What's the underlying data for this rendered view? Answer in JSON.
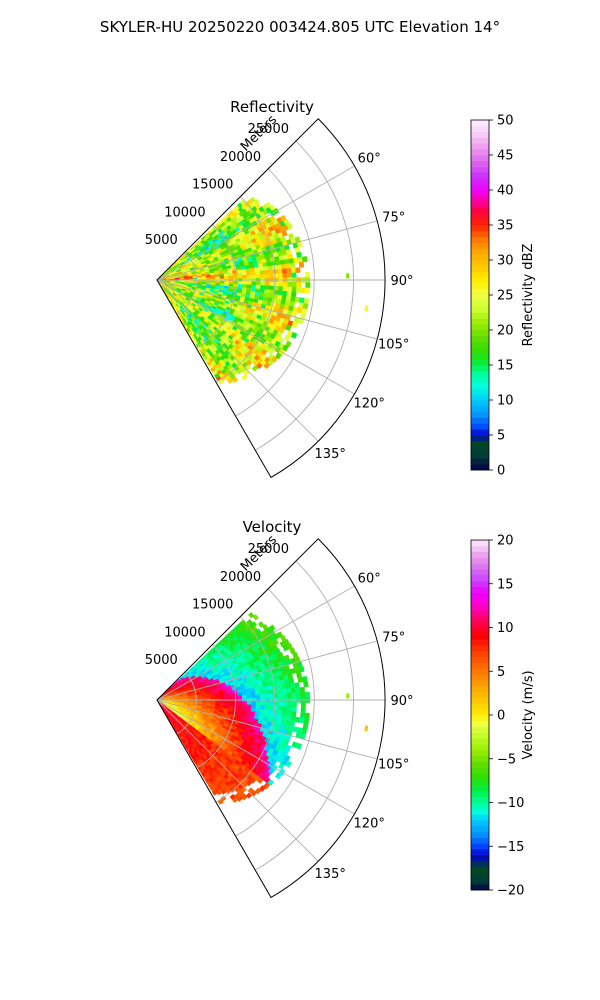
{
  "figure": {
    "title": "SKYLER-HU  20250220  003424.805 UTC Elevation 14°"
  },
  "colors": {
    "grid": "#b0b0b0",
    "frame": "#000000"
  },
  "chart_data": [
    {
      "type": "heatmap",
      "subtype": "polar-ppi-sector",
      "title": "Reflectivity",
      "range_label": "Meters",
      "range_ticks": [
        5000,
        10000,
        15000,
        20000,
        25000
      ],
      "range_tick_labels": [
        "5000",
        "10000",
        "15000",
        "20000",
        "25000"
      ],
      "range_max": 29000,
      "azimuth_min": 45,
      "azimuth_max": 150,
      "azimuth_ticks": [
        60,
        75,
        90,
        105,
        120,
        135
      ],
      "azimuth_tick_labels": [
        "60°",
        "75°",
        "90°",
        "105°",
        "120°",
        "135°"
      ],
      "data_azimuth_range": [
        47,
        149
      ],
      "data_range_max_approx": 19500,
      "grid": true,
      "colorbar": {
        "label": "Reflectivity dBZ",
        "min": 0,
        "max": 50,
        "ticks": [
          0,
          5,
          10,
          15,
          20,
          25,
          30,
          35,
          40,
          45,
          50
        ],
        "tick_labels": [
          "0",
          "5",
          "10",
          "15",
          "20",
          "25",
          "30",
          "35",
          "40",
          "45",
          "50"
        ],
        "stops": [
          {
            "v": 0,
            "c": "#00004a"
          },
          {
            "v": 2,
            "c": "#003a3a"
          },
          {
            "v": 4,
            "c": "#004a22"
          },
          {
            "v": 5,
            "c": "#0000cc"
          },
          {
            "v": 6,
            "c": "#0044ff"
          },
          {
            "v": 8,
            "c": "#0099ff"
          },
          {
            "v": 10,
            "c": "#00ccff"
          },
          {
            "v": 12,
            "c": "#00ffdd"
          },
          {
            "v": 14,
            "c": "#00ff99"
          },
          {
            "v": 15,
            "c": "#00ee44"
          },
          {
            "v": 17,
            "c": "#33dd00"
          },
          {
            "v": 19,
            "c": "#66dd00"
          },
          {
            "v": 21,
            "c": "#99ee00"
          },
          {
            "v": 23,
            "c": "#ccff33"
          },
          {
            "v": 25,
            "c": "#eeff44"
          },
          {
            "v": 27,
            "c": "#ffee00"
          },
          {
            "v": 29,
            "c": "#ffcc00"
          },
          {
            "v": 31,
            "c": "#ffaa00"
          },
          {
            "v": 33,
            "c": "#ff7700"
          },
          {
            "v": 35,
            "c": "#ff2200"
          },
          {
            "v": 37,
            "c": "#ff0044"
          },
          {
            "v": 38,
            "c": "#ff0088"
          },
          {
            "v": 40,
            "c": "#ee00ff"
          },
          {
            "v": 42,
            "c": "#cc33ff"
          },
          {
            "v": 44,
            "c": "#dd66ee"
          },
          {
            "v": 46,
            "c": "#ee99ee"
          },
          {
            "v": 48,
            "c": "#f5ccf5"
          },
          {
            "v": 50,
            "c": "#fff0ff"
          }
        ]
      }
    },
    {
      "type": "heatmap",
      "subtype": "polar-ppi-sector",
      "title": "Velocity",
      "range_label": "Meters",
      "range_ticks": [
        5000,
        10000,
        15000,
        20000,
        25000
      ],
      "range_tick_labels": [
        "5000",
        "10000",
        "15000",
        "20000",
        "25000"
      ],
      "range_max": 29000,
      "azimuth_min": 45,
      "azimuth_max": 150,
      "azimuth_ticks": [
        60,
        75,
        90,
        105,
        120,
        135
      ],
      "azimuth_tick_labels": [
        "60°",
        "75°",
        "90°",
        "105°",
        "120°",
        "135°"
      ],
      "data_azimuth_range": [
        47,
        149
      ],
      "data_range_max_approx": 19500,
      "grid": true,
      "colorbar": {
        "label": "Velocity (m/s)",
        "min": -20,
        "max": 20,
        "ticks": [
          -20,
          -15,
          -10,
          -5,
          0,
          5,
          10,
          15,
          20
        ],
        "tick_labels": [
          "−20",
          "−15",
          "−10",
          "−5",
          "0",
          "5",
          "10",
          "15",
          "20"
        ],
        "stops": [
          {
            "v": -20,
            "c": "#00004a"
          },
          {
            "v": -19,
            "c": "#003a3a"
          },
          {
            "v": -17.5,
            "c": "#004a22"
          },
          {
            "v": -16,
            "c": "#0000cc"
          },
          {
            "v": -15,
            "c": "#0044ff"
          },
          {
            "v": -13.5,
            "c": "#0099ff"
          },
          {
            "v": -12,
            "c": "#00ccff"
          },
          {
            "v": -11,
            "c": "#00ffdd"
          },
          {
            "v": -10,
            "c": "#00ff99"
          },
          {
            "v": -8.5,
            "c": "#00ee44"
          },
          {
            "v": -7,
            "c": "#33dd00"
          },
          {
            "v": -5.5,
            "c": "#66dd00"
          },
          {
            "v": -4,
            "c": "#99ee00"
          },
          {
            "v": -2,
            "c": "#ccff33"
          },
          {
            "v": -1,
            "c": "#eeff44"
          },
          {
            "v": 0,
            "c": "#ffee00"
          },
          {
            "v": 1.5,
            "c": "#ffcc00"
          },
          {
            "v": 3,
            "c": "#ffaa00"
          },
          {
            "v": 5,
            "c": "#ff7700"
          },
          {
            "v": 7,
            "c": "#ff4400"
          },
          {
            "v": 9,
            "c": "#ff0000"
          },
          {
            "v": 11,
            "c": "#ff0066"
          },
          {
            "v": 12.5,
            "c": "#ff00cc"
          },
          {
            "v": 14,
            "c": "#ee00ff"
          },
          {
            "v": 15.5,
            "c": "#cc44ff"
          },
          {
            "v": 17,
            "c": "#dd77ee"
          },
          {
            "v": 18.5,
            "c": "#eeaaee"
          },
          {
            "v": 20,
            "c": "#fff0ff"
          }
        ]
      }
    }
  ]
}
